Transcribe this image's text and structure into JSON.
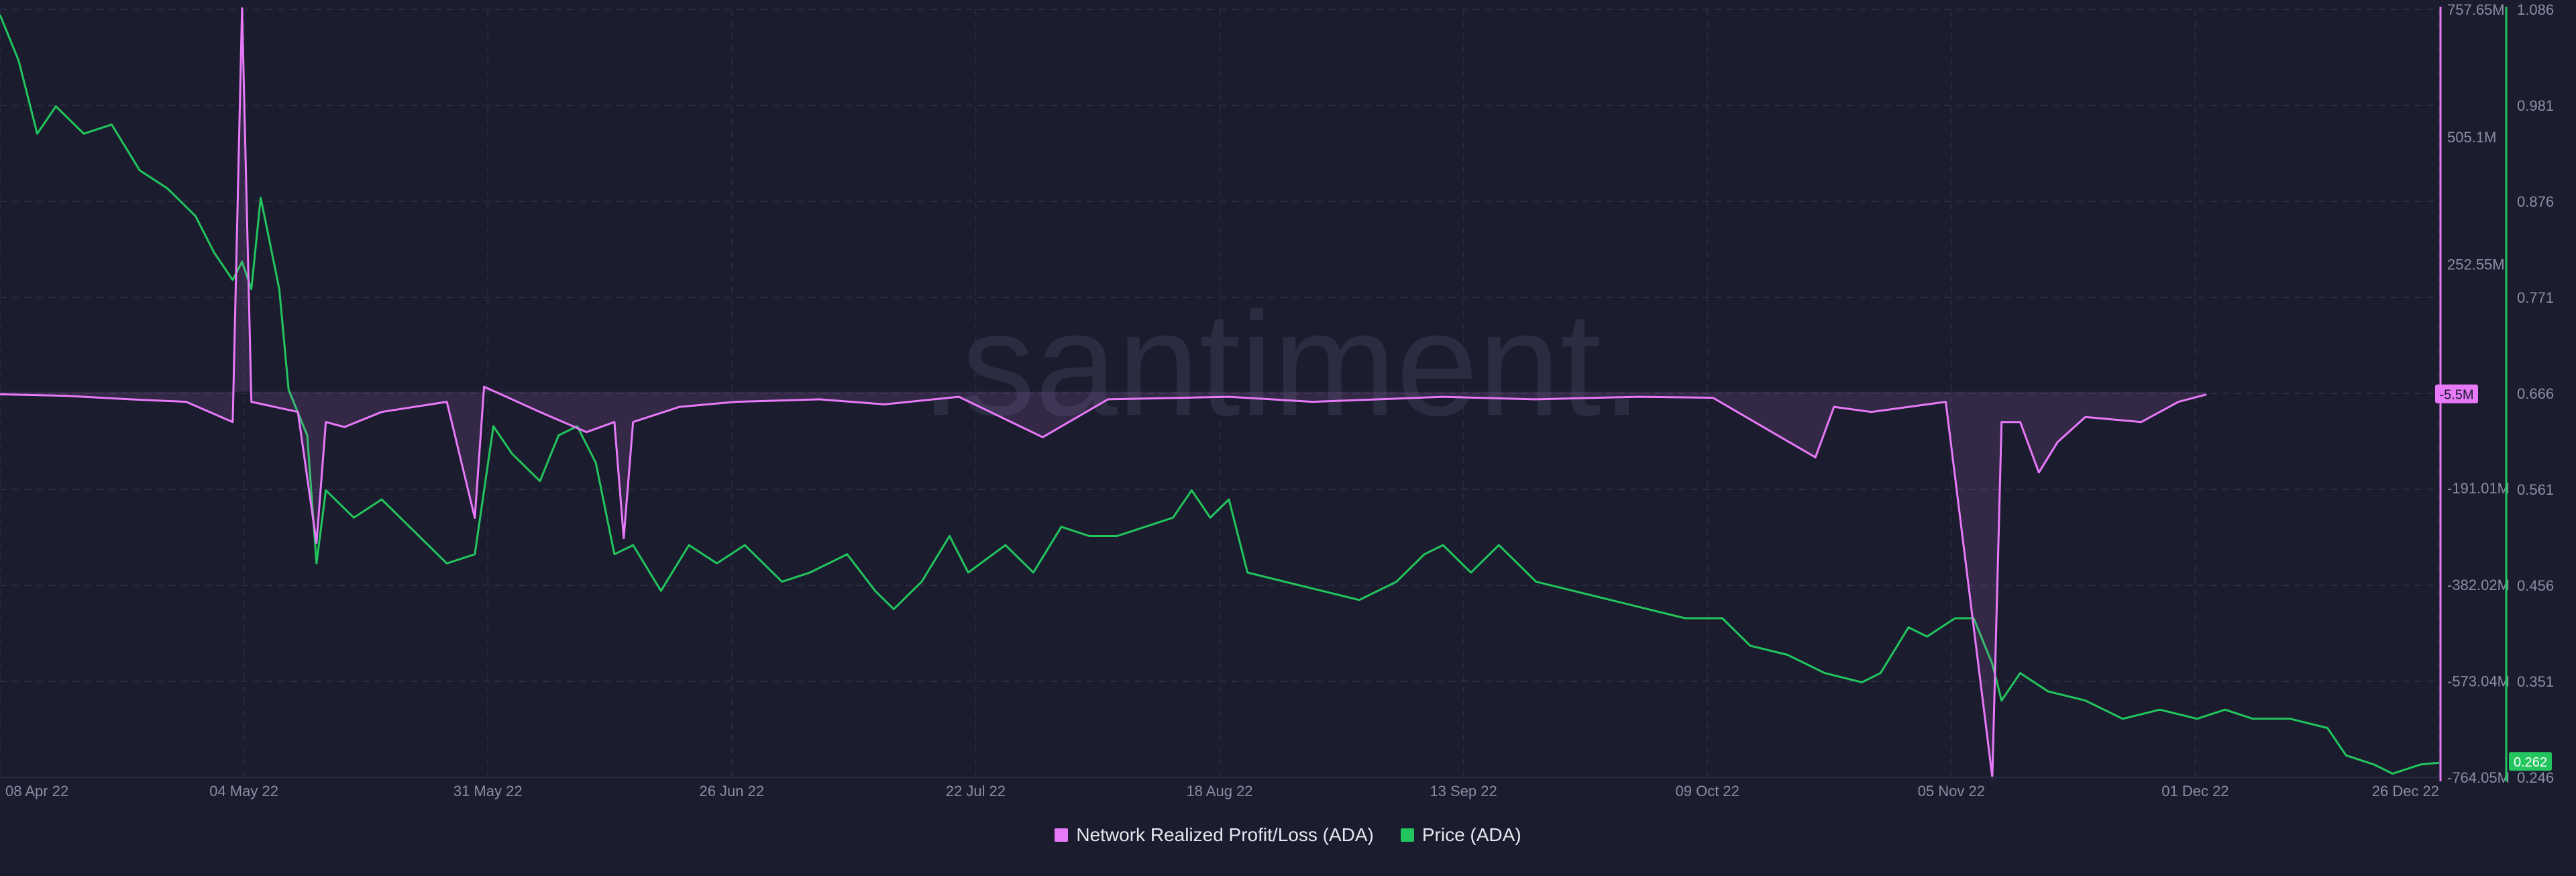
{
  "watermark": ".santiment.",
  "legend": [
    {
      "label": "Network Realized Profit/Loss (ADA)",
      "color": "#e879f9"
    },
    {
      "label": "Price (ADA)",
      "color": "#22c55e"
    }
  ],
  "chart_data": {
    "type": "line",
    "x_tick_labels": [
      "08 Apr 22",
      "04 May 22",
      "31 May 22",
      "26 Jun 22",
      "22 Jul 22",
      "18 Aug 22",
      "13 Sep 22",
      "09 Oct 22",
      "05 Nov 22",
      "01 Dec 22",
      "26 Dec 22"
    ],
    "x_range": [
      "2022-04-08",
      "2022-12-26"
    ],
    "series": [
      {
        "name": "Network Realized Profit/Loss (ADA)",
        "color": "#e879f9",
        "axis": "left-right-pink",
        "ylim": [
          -764050000,
          757650000
        ],
        "y_tick_labels": [
          "757.65M",
          "505.1M",
          "252.55M",
          "-191.01M",
          "-382.02M",
          "-573.04M",
          "-764.05M"
        ],
        "last_value_label": "-5.5M",
        "points": [
          [
            "2022-04-08",
            -5000000
          ],
          [
            "2022-04-15",
            -8000000
          ],
          [
            "2022-04-22",
            -15000000
          ],
          [
            "2022-04-28",
            -20000000
          ],
          [
            "2022-05-03",
            -60000000
          ],
          [
            "2022-05-04",
            760000000
          ],
          [
            "2022-05-05",
            -20000000
          ],
          [
            "2022-05-10",
            -40000000
          ],
          [
            "2022-05-12",
            -300000000
          ],
          [
            "2022-05-13",
            -60000000
          ],
          [
            "2022-05-15",
            -70000000
          ],
          [
            "2022-05-19",
            -40000000
          ],
          [
            "2022-05-26",
            -20000000
          ],
          [
            "2022-05-29",
            -250000000
          ],
          [
            "2022-05-30",
            10000000
          ],
          [
            "2022-06-05",
            -40000000
          ],
          [
            "2022-06-10",
            -80000000
          ],
          [
            "2022-06-13",
            -60000000
          ],
          [
            "2022-06-14",
            -290000000
          ],
          [
            "2022-06-15",
            -60000000
          ],
          [
            "2022-06-20",
            -30000000
          ],
          [
            "2022-06-26",
            -20000000
          ],
          [
            "2022-07-05",
            -15000000
          ],
          [
            "2022-07-12",
            -25000000
          ],
          [
            "2022-07-20",
            -10000000
          ],
          [
            "2022-07-29",
            -90000000
          ],
          [
            "2022-08-05",
            -15000000
          ],
          [
            "2022-08-18",
            -10000000
          ],
          [
            "2022-08-27",
            -20000000
          ],
          [
            "2022-09-10",
            -10000000
          ],
          [
            "2022-09-20",
            -15000000
          ],
          [
            "2022-10-01",
            -10000000
          ],
          [
            "2022-10-09",
            -12000000
          ],
          [
            "2022-10-20",
            -130000000
          ],
          [
            "2022-10-22",
            -30000000
          ],
          [
            "2022-10-26",
            -40000000
          ],
          [
            "2022-11-03",
            -20000000
          ],
          [
            "2022-11-08",
            -764050000
          ],
          [
            "2022-11-09",
            -60000000
          ],
          [
            "2022-11-11",
            -60000000
          ],
          [
            "2022-11-13",
            -160000000
          ],
          [
            "2022-11-15",
            -100000000
          ],
          [
            "2022-11-18",
            -50000000
          ],
          [
            "2022-11-24",
            -60000000
          ],
          [
            "2022-11-28",
            -20000000
          ],
          [
            "2022-12-01",
            -5500000
          ]
        ]
      },
      {
        "name": "Price (ADA)",
        "color": "#22c55e",
        "axis": "right-green",
        "ylim": [
          0.246,
          1.086
        ],
        "y_tick_labels": [
          "1.086",
          "0.981",
          "0.876",
          "0.771",
          "0.666",
          "0.561",
          "0.456",
          "0.351",
          "0.246"
        ],
        "last_value_label": "0.262",
        "points": [
          [
            "2022-04-08",
            1.08
          ],
          [
            "2022-04-10",
            1.03
          ],
          [
            "2022-04-12",
            0.95
          ],
          [
            "2022-04-14",
            0.98
          ],
          [
            "2022-04-17",
            0.95
          ],
          [
            "2022-04-20",
            0.96
          ],
          [
            "2022-04-23",
            0.91
          ],
          [
            "2022-04-26",
            0.89
          ],
          [
            "2022-04-29",
            0.86
          ],
          [
            "2022-05-01",
            0.82
          ],
          [
            "2022-05-03",
            0.79
          ],
          [
            "2022-05-04",
            0.81
          ],
          [
            "2022-05-05",
            0.78
          ],
          [
            "2022-05-06",
            0.88
          ],
          [
            "2022-05-07",
            0.83
          ],
          [
            "2022-05-08",
            0.78
          ],
          [
            "2022-05-09",
            0.67
          ],
          [
            "2022-05-11",
            0.62
          ],
          [
            "2022-05-12",
            0.48
          ],
          [
            "2022-05-13",
            0.56
          ],
          [
            "2022-05-16",
            0.53
          ],
          [
            "2022-05-19",
            0.55
          ],
          [
            "2022-05-22",
            0.52
          ],
          [
            "2022-05-26",
            0.48
          ],
          [
            "2022-05-29",
            0.49
          ],
          [
            "2022-05-31",
            0.63
          ],
          [
            "2022-06-02",
            0.6
          ],
          [
            "2022-06-05",
            0.57
          ],
          [
            "2022-06-07",
            0.62
          ],
          [
            "2022-06-09",
            0.63
          ],
          [
            "2022-06-11",
            0.59
          ],
          [
            "2022-06-13",
            0.49
          ],
          [
            "2022-06-15",
            0.5
          ],
          [
            "2022-06-18",
            0.45
          ],
          [
            "2022-06-21",
            0.5
          ],
          [
            "2022-06-24",
            0.48
          ],
          [
            "2022-06-27",
            0.5
          ],
          [
            "2022-07-01",
            0.46
          ],
          [
            "2022-07-04",
            0.47
          ],
          [
            "2022-07-08",
            0.49
          ],
          [
            "2022-07-11",
            0.45
          ],
          [
            "2022-07-13",
            0.43
          ],
          [
            "2022-07-16",
            0.46
          ],
          [
            "2022-07-19",
            0.51
          ],
          [
            "2022-07-21",
            0.47
          ],
          [
            "2022-07-25",
            0.5
          ],
          [
            "2022-07-28",
            0.47
          ],
          [
            "2022-07-31",
            0.52
          ],
          [
            "2022-08-03",
            0.51
          ],
          [
            "2022-08-06",
            0.51
          ],
          [
            "2022-08-09",
            0.52
          ],
          [
            "2022-08-12",
            0.53
          ],
          [
            "2022-08-14",
            0.56
          ],
          [
            "2022-08-16",
            0.53
          ],
          [
            "2022-08-18",
            0.55
          ],
          [
            "2022-08-20",
            0.47
          ],
          [
            "2022-08-24",
            0.46
          ],
          [
            "2022-08-28",
            0.45
          ],
          [
            "2022-09-01",
            0.44
          ],
          [
            "2022-09-05",
            0.46
          ],
          [
            "2022-09-08",
            0.49
          ],
          [
            "2022-09-10",
            0.5
          ],
          [
            "2022-09-13",
            0.47
          ],
          [
            "2022-09-16",
            0.5
          ],
          [
            "2022-09-18",
            0.48
          ],
          [
            "2022-09-20",
            0.46
          ],
          [
            "2022-09-24",
            0.45
          ],
          [
            "2022-09-28",
            0.44
          ],
          [
            "2022-10-02",
            0.43
          ],
          [
            "2022-10-06",
            0.42
          ],
          [
            "2022-10-10",
            0.42
          ],
          [
            "2022-10-13",
            0.39
          ],
          [
            "2022-10-17",
            0.38
          ],
          [
            "2022-10-21",
            0.36
          ],
          [
            "2022-10-25",
            0.35
          ],
          [
            "2022-10-27",
            0.36
          ],
          [
            "2022-10-30",
            0.41
          ],
          [
            "2022-11-01",
            0.4
          ],
          [
            "2022-11-04",
            0.42
          ],
          [
            "2022-11-06",
            0.42
          ],
          [
            "2022-11-08",
            0.37
          ],
          [
            "2022-11-09",
            0.33
          ],
          [
            "2022-11-11",
            0.36
          ],
          [
            "2022-11-14",
            0.34
          ],
          [
            "2022-11-18",
            0.33
          ],
          [
            "2022-11-22",
            0.31
          ],
          [
            "2022-11-26",
            0.32
          ],
          [
            "2022-11-30",
            0.31
          ],
          [
            "2022-12-03",
            0.32
          ],
          [
            "2022-12-06",
            0.31
          ],
          [
            "2022-12-10",
            0.31
          ],
          [
            "2022-12-14",
            0.3
          ],
          [
            "2022-12-16",
            0.27
          ],
          [
            "2022-12-19",
            0.26
          ],
          [
            "2022-12-21",
            0.25
          ],
          [
            "2022-12-24",
            0.26
          ],
          [
            "2022-12-26",
            0.262
          ]
        ]
      }
    ],
    "grid": true,
    "legend_position": "bottom-center"
  }
}
